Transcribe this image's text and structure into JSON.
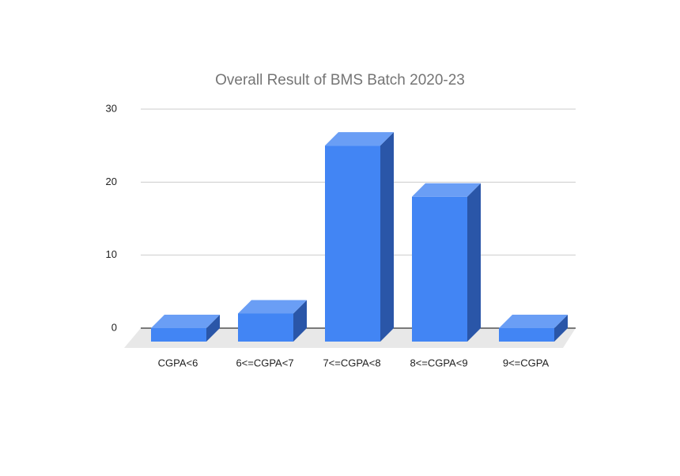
{
  "chart_data": {
    "type": "bar3d",
    "title": "Overall Result of BMS Batch 2020-23",
    "categories": [
      "CGPA<6",
      "6<=CGPA<7",
      "7<=CGPA<8",
      "8<=CGPA<9",
      "9<=CGPA"
    ],
    "values": [
      0,
      2,
      25,
      18,
      0
    ],
    "color": "#4285f4",
    "ylim": [
      0,
      30
    ],
    "yticks": [
      0,
      10,
      20,
      30
    ],
    "grid": true
  }
}
